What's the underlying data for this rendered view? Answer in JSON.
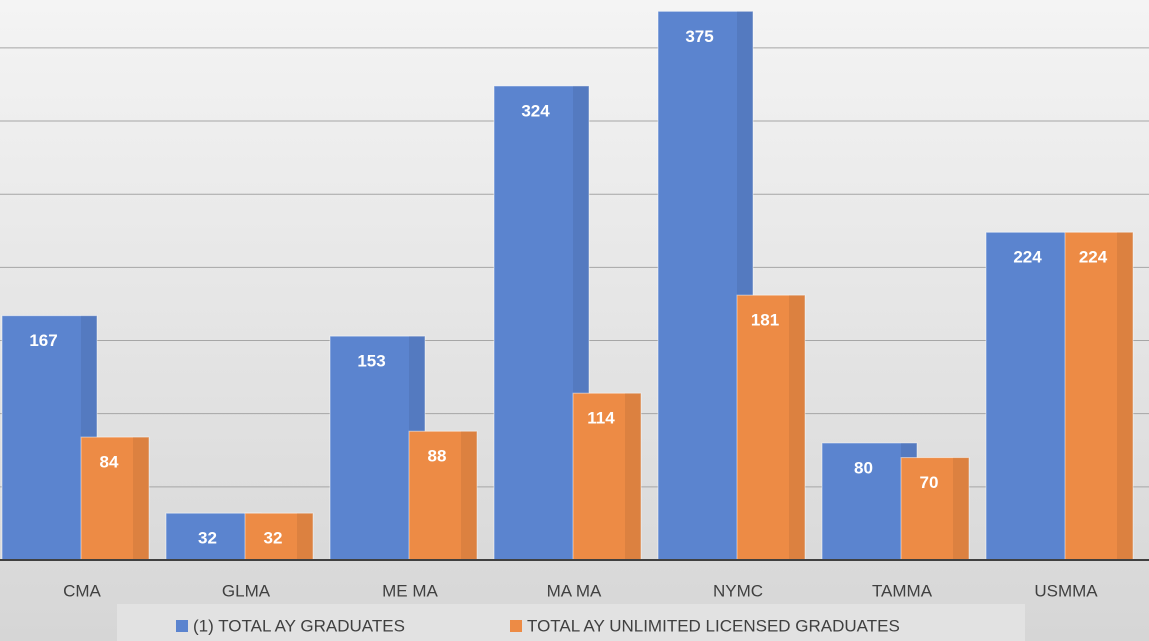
{
  "chart_data": {
    "type": "bar",
    "categories": [
      "CMA",
      "GLMA",
      "ME MA",
      "MA MA",
      "NYMC",
      "TAMMA",
      "USMMA"
    ],
    "series": [
      {
        "name": "(1) TOTAL AY GRADUATES",
        "color": "#5b84cf",
        "values": [
          167,
          32,
          153,
          324,
          375,
          80,
          224
        ]
      },
      {
        "name": "TOTAL AY UNLIMITED LICENSED GRADUATES",
        "color": "#ed8b45",
        "values": [
          84,
          32,
          88,
          114,
          181,
          70,
          224
        ]
      }
    ],
    "ylim": [
      0,
      380
    ],
    "yticks": [
      0,
      50,
      100,
      150,
      200,
      250,
      300,
      350
    ],
    "grid": true,
    "legend": "bottom"
  }
}
